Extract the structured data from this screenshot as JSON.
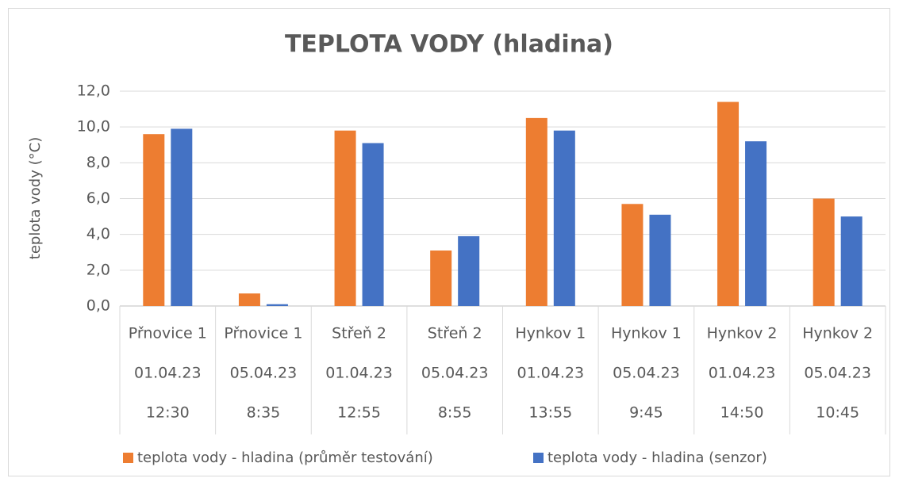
{
  "chart_data": {
    "type": "bar",
    "title": "TEPLOTA VODY (hladina)",
    "y_label": "teplota vody (°C)",
    "categories": [
      [
        "Přnovice 1",
        "01.04.23",
        "12:30"
      ],
      [
        "Přnovice 1",
        "05.04.23",
        "8:35"
      ],
      [
        "Střeň 2",
        "01.04.23",
        "12:55"
      ],
      [
        "Střeň 2",
        "05.04.23",
        "8:55"
      ],
      [
        "Hynkov 1",
        "01.04.23",
        "13:55"
      ],
      [
        "Hynkov 1",
        "05.04.23",
        "9:45"
      ],
      [
        "Hynkov 2",
        "01.04.23",
        "14:50"
      ],
      [
        "Hynkov 2",
        "05.04.23",
        "10:45"
      ]
    ],
    "series": [
      {
        "name": "teplota vody - hladina (průměr testování)",
        "color": "#ed7d31",
        "values": [
          9.6,
          0.7,
          9.8,
          3.1,
          10.5,
          5.7,
          11.4,
          6.0
        ]
      },
      {
        "name": "teplota vody - hladina (senzor)",
        "color": "#4472c4",
        "values": [
          9.9,
          0.1,
          9.1,
          3.9,
          9.8,
          5.1,
          9.2,
          5.0
        ]
      }
    ],
    "ylim": [
      0,
      12
    ],
    "yticks": [
      {
        "value": 0,
        "label": "0,0"
      },
      {
        "value": 2,
        "label": "2,0"
      },
      {
        "value": 4,
        "label": "4,0"
      },
      {
        "value": 6,
        "label": "6,0"
      },
      {
        "value": 8,
        "label": "8,0"
      },
      {
        "value": 10,
        "label": "10,0"
      },
      {
        "value": 12,
        "label": "12,0"
      }
    ],
    "grid": true,
    "legend": "bottom"
  }
}
